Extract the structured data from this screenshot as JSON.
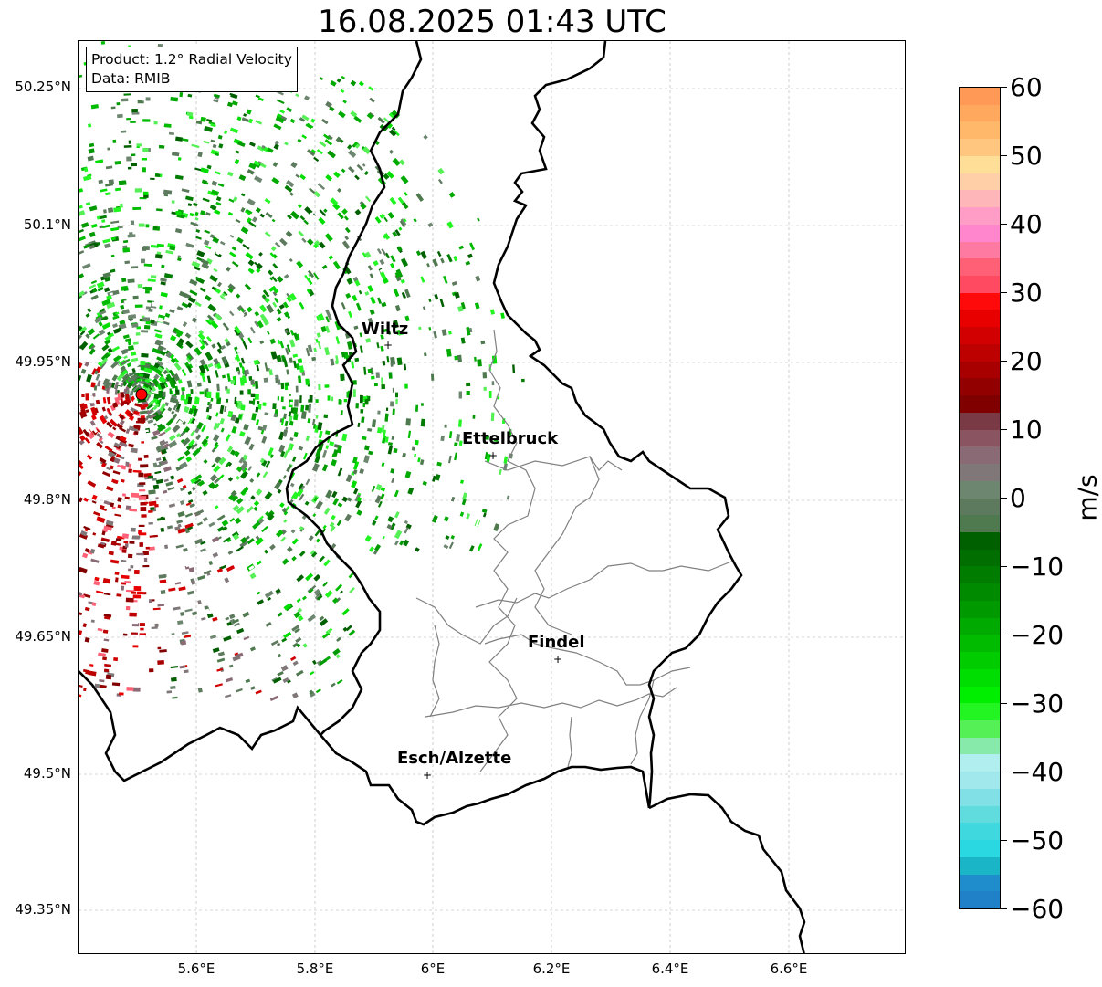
{
  "title": "16.08.2025 01:43 UTC",
  "info_box": {
    "product": "Product: 1.2° Radial Velocity",
    "data": "Data: RMIB"
  },
  "axes": {
    "lat_labels": [
      "50.25°N",
      "50.1°N",
      "49.95°N",
      "49.8°N",
      "49.65°N",
      "49.5°N",
      "49.35°N"
    ],
    "lon_labels": [
      "5.6°E",
      "5.8°E",
      "6°E",
      "6.2°E",
      "6.4°E",
      "6.6°E"
    ]
  },
  "cities": [
    {
      "name": "Wiltz"
    },
    {
      "name": "Ettelbruck"
    },
    {
      "name": "Findel"
    },
    {
      "name": "Esch/Alzette"
    }
  ],
  "colorbar": {
    "label": "m/s",
    "ticks": [
      "60",
      "50",
      "40",
      "30",
      "20",
      "10",
      "0",
      "−10",
      "−20",
      "−30",
      "−40",
      "−50",
      "−60"
    ],
    "range": [
      -60,
      60
    ],
    "colors_top_to_bottom": [
      "#ff9955",
      "#ffa85e",
      "#ffb86a",
      "#ffc680",
      "#ffdf98",
      "#ffd0a8",
      "#ffb6b9",
      "#ff9dc6",
      "#ff85cc",
      "#ff7aa0",
      "#ff6075",
      "#ff4a62",
      "#ff0a0a",
      "#e80000",
      "#d20000",
      "#bd0000",
      "#a80000",
      "#930000",
      "#800000",
      "#7a3a45",
      "#8a5560",
      "#8a6a75",
      "#807878",
      "#6d8670",
      "#5e7a5e",
      "#4f7a4f",
      "#006000",
      "#006e00",
      "#007c00",
      "#008a00",
      "#009900",
      "#00aa00",
      "#00bb00",
      "#00cc00",
      "#00dd00",
      "#00ee00",
      "#22f522",
      "#55f055",
      "#88eaaa",
      "#b0eef0",
      "#a0e8ec",
      "#80e0e6",
      "#60dcdf",
      "#40d8df",
      "#2ad8e2",
      "#1ab6c8",
      "#1f8ccc",
      "#2080c8"
    ]
  },
  "map": {
    "radar_site": {
      "color": "#ff0000"
    },
    "colors": {
      "border": "#000000",
      "canton": "#808080",
      "grid": "#b0b0b0"
    }
  }
}
